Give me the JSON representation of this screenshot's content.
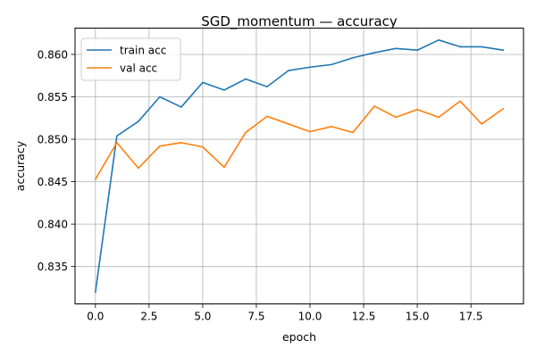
{
  "chart_data": {
    "type": "line",
    "title": "SGD_momentum — accuracy",
    "xlabel": "epoch",
    "ylabel": "accuracy",
    "xlim": [
      -0.95,
      19.95
    ],
    "ylim": [
      0.8306,
      0.8631
    ],
    "grid": true,
    "legend_position": "top-left",
    "x_ticks": [
      0.0,
      2.5,
      5.0,
      7.5,
      10.0,
      12.5,
      15.0,
      17.5
    ],
    "x_tick_labels": [
      "0.0",
      "2.5",
      "5.0",
      "7.5",
      "10.0",
      "12.5",
      "15.0",
      "17.5"
    ],
    "y_ticks": [
      0.835,
      0.84,
      0.845,
      0.85,
      0.855,
      0.86
    ],
    "y_tick_labels": [
      "0.835",
      "0.840",
      "0.845",
      "0.850",
      "0.855",
      "0.860"
    ],
    "x": [
      0,
      1,
      2,
      3,
      4,
      5,
      6,
      7,
      8,
      9,
      10,
      11,
      12,
      13,
      14,
      15,
      16,
      17,
      18,
      19
    ],
    "series": [
      {
        "name": "train acc",
        "color": "#1f77b4",
        "values": [
          0.832,
          0.8504,
          0.8521,
          0.855,
          0.8538,
          0.8567,
          0.8558,
          0.8571,
          0.8562,
          0.8581,
          0.8585,
          0.8588,
          0.8596,
          0.8602,
          0.8607,
          0.8605,
          0.8617,
          0.8609,
          0.8609,
          0.8605
        ]
      },
      {
        "name": "val acc",
        "color": "#ff7f0e",
        "values": [
          0.8453,
          0.8496,
          0.8466,
          0.8492,
          0.8496,
          0.8491,
          0.8467,
          0.8508,
          0.8527,
          0.8518,
          0.8509,
          0.8515,
          0.8508,
          0.8539,
          0.8526,
          0.8535,
          0.8526,
          0.8545,
          0.8518,
          0.8536
        ]
      }
    ]
  }
}
